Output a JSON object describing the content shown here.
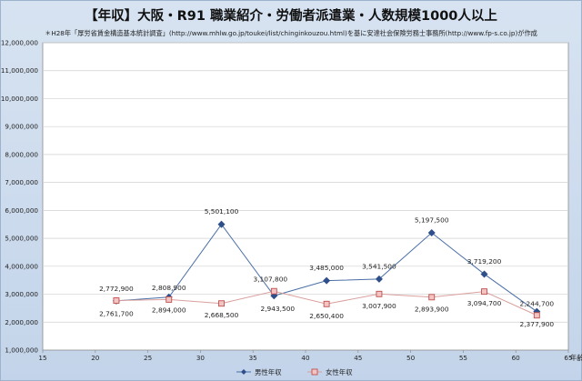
{
  "chart_data": {
    "type": "line",
    "title": "【年収】大阪・R91 職業紹介・労働者派遣業・人数規模1000人以上",
    "subtitle": "＊H28年「厚労省賃金構造基本統計調査」(http://www.mhlw.go.jp/toukei/list/chinginkouzou.html)を基に安達社会保険労務士事務所(http://www.fp-s.co.jp)が作成",
    "xlabel": "年齢",
    "ylabel": "",
    "xlim": [
      15,
      65
    ],
    "ylim": [
      1000000,
      12000000
    ],
    "x_ticks": [
      "15",
      "20",
      "25",
      "30",
      "35",
      "40",
      "45",
      "50",
      "55",
      "60",
      "65"
    ],
    "y_ticks": [
      "1,000,000",
      "2,000,000",
      "3,000,000",
      "4,000,000",
      "5,000,000",
      "6,000,000",
      "7,000,000",
      "8,000,000",
      "9,000,000",
      "10,000,000",
      "11,000,000",
      "12,000,000"
    ],
    "grid": true,
    "legend": "bottom",
    "series": [
      {
        "name": "男性年収",
        "color": "#2f4f8a",
        "marker": "diamond",
        "x": [
          22,
          27,
          32,
          37,
          42,
          47,
          52,
          57,
          62
        ],
        "values": [
          2761700,
          2894000,
          5501100,
          2943500,
          3485000,
          3541500,
          5197500,
          3719200,
          2377900
        ],
        "labels": [
          "2,761,700",
          "2,894,000",
          "5,501,100",
          "2,943,500",
          "3,485,000",
          "3,541,500",
          "5,197,500",
          "3,719,200",
          "2,377,900"
        ]
      },
      {
        "name": "女性年収",
        "color": "#c0504d",
        "marker": "square",
        "x": [
          22,
          27,
          32,
          37,
          42,
          47,
          52,
          57,
          62
        ],
        "values": [
          2772900,
          2808900,
          2668500,
          3107800,
          2650400,
          3007900,
          2893900,
          3094700,
          2244700
        ],
        "labels": [
          "2,772,900",
          "2,808,900",
          "2,668,500",
          "3,107,800",
          "2,650,400",
          "3,007,900",
          "2,893,900",
          "3,094,700",
          "2,244,700"
        ]
      }
    ]
  }
}
